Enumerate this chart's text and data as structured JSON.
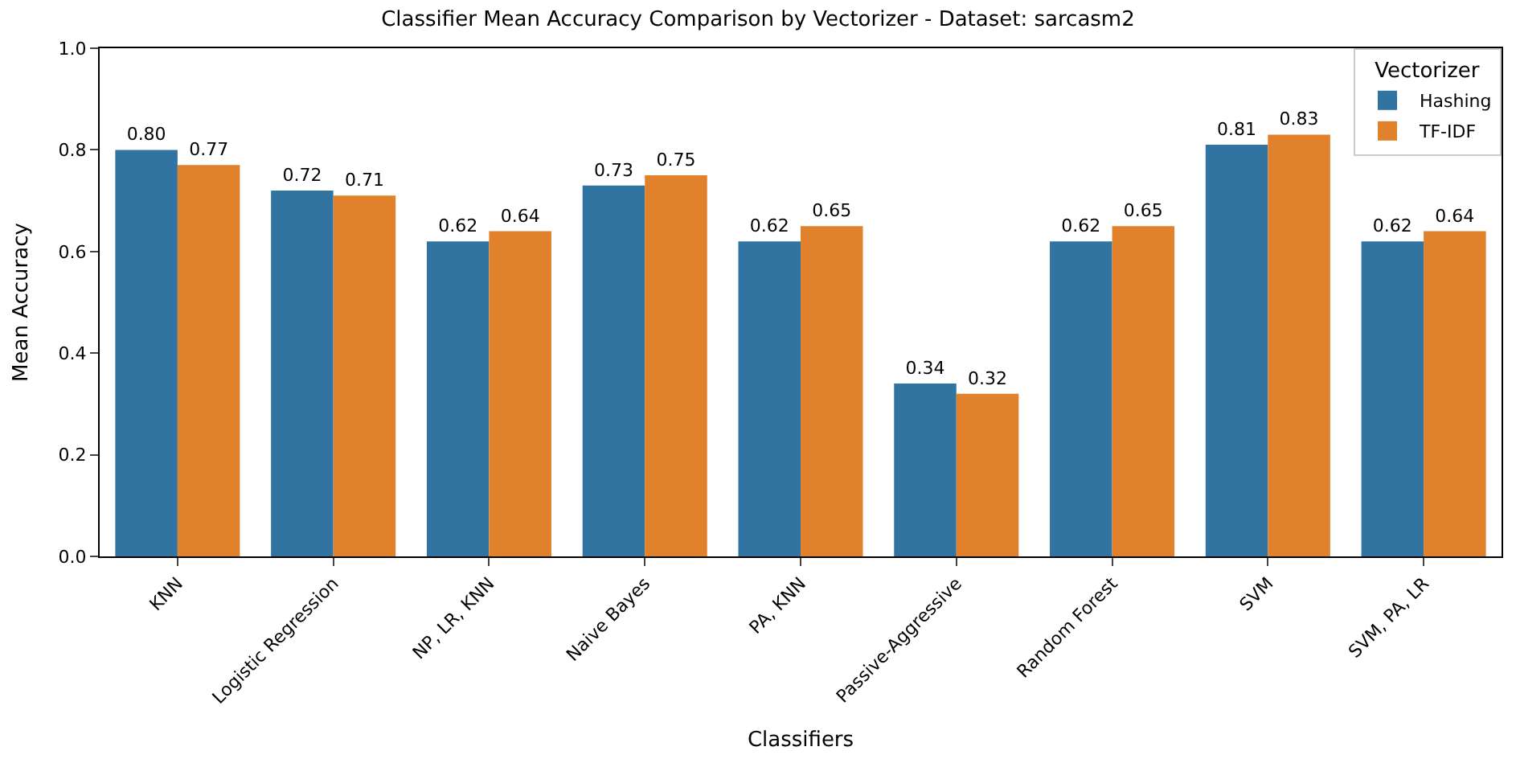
{
  "chart_data": {
    "type": "bar",
    "title": "Classifier Mean Accuracy Comparison by Vectorizer - Dataset: sarcasm2",
    "xlabel": "Classifiers",
    "ylabel": "Mean Accuracy",
    "legend_title": "Vectorizer",
    "categories": [
      "KNN",
      "Logistic Regression",
      "NP, LR, KNN",
      "Naive Bayes",
      "PA, KNN",
      "Passive-Aggressive",
      "Random Forest",
      "SVM",
      "SVM, PA, LR"
    ],
    "series": [
      {
        "name": "Hashing",
        "color": "#3274a1",
        "values": [
          0.8,
          0.72,
          0.62,
          0.73,
          0.62,
          0.34,
          0.62,
          0.81,
          0.62
        ],
        "value_labels": [
          "0.80",
          "0.72",
          "0.62",
          "0.73",
          "0.62",
          "0.34",
          "0.62",
          "0.81",
          "0.62"
        ]
      },
      {
        "name": "TF-IDF",
        "color": "#e1812c",
        "values": [
          0.77,
          0.71,
          0.64,
          0.75,
          0.65,
          0.32,
          0.65,
          0.83,
          0.64
        ],
        "value_labels": [
          "0.77",
          "0.71",
          "0.64",
          "0.75",
          "0.65",
          "0.32",
          "0.65",
          "0.83",
          "0.64"
        ]
      }
    ],
    "ylim": [
      0,
      1.0
    ],
    "yticks": [
      {
        "value": 0,
        "label": "0.0"
      },
      0.2,
      0.4,
      0.6,
      0.8,
      {
        "value": 1,
        "label": "1.0"
      }
    ],
    "legend": "top right"
  }
}
